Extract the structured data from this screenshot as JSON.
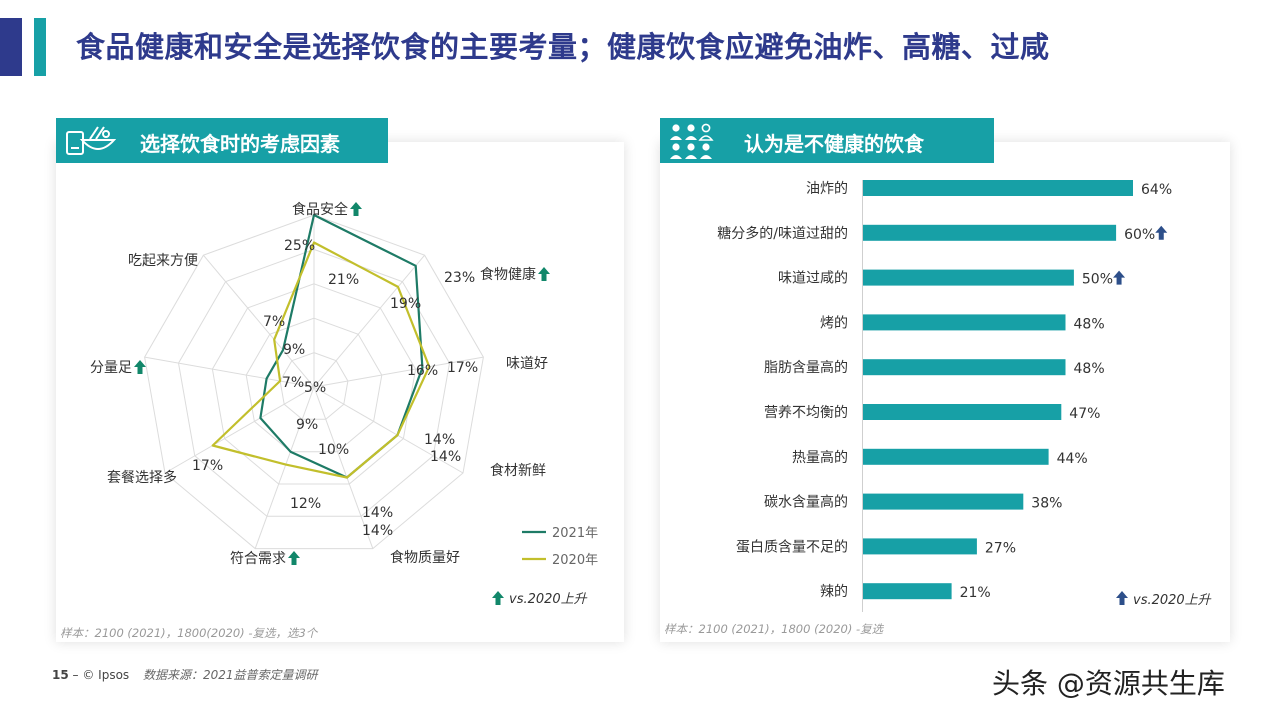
{
  "page": {
    "title": "食品健康和安全是选择饮食的主要考量；健康饮食应避免油炸、高糖、过咸",
    "page_number": "15",
    "dash": "–",
    "brand": "© Ipsos",
    "source": "数据来源：2021益普索定量调研",
    "watermark": "头条 @资源共生库"
  },
  "left_panel": {
    "title": "选择饮食时的考虑因素",
    "icon": "food-bowl-icon",
    "note": "样本：2100 (2021)，1800(2020) -复选，选3个",
    "legend_2021": "2021年",
    "legend_2020": "2020年",
    "vs_label": "vs.2020上升"
  },
  "right_panel": {
    "title": "认为是不健康的饮食",
    "icon": "people-group-icon",
    "note": "样本：2100 (2021)，1800 (2020) -复选",
    "vs_label": "vs.2020上升"
  },
  "colors": {
    "primary": "#2e3a8c",
    "teal": "#17a0a6",
    "green": "#1e7b66",
    "olive": "#c2bf2c",
    "up_green": "#12876a",
    "up_blue": "#2d4f8a"
  },
  "chart_data": [
    {
      "type": "radar",
      "axes": [
        "食品安全",
        "食物健康",
        "味道好",
        "食材新鲜",
        "食物质量好",
        "符合需求",
        "套餐选择多",
        "分量足",
        "吃起来方便"
      ],
      "up_markers": [
        true,
        true,
        false,
        false,
        false,
        true,
        false,
        true,
        false
      ],
      "series": [
        {
          "name": "2021年",
          "values": [
            25,
            23,
            16,
            14,
            14,
            10,
            9,
            7,
            7
          ],
          "labels": [
            "25%",
            "23%",
            "16%",
            "14%",
            "14%",
            "10%",
            "9%",
            "7%",
            "7%"
          ]
        },
        {
          "name": "2020年",
          "values": [
            21,
            19,
            17,
            14,
            14,
            12,
            17,
            5,
            9
          ],
          "labels": [
            "21%",
            "19%",
            "17%",
            "14%",
            "14%",
            "12%",
            "17%",
            "5%",
            "9%"
          ]
        }
      ],
      "range": [
        0,
        25
      ]
    },
    {
      "type": "bar",
      "orientation": "horizontal",
      "categories": [
        "油炸的",
        "糖分多的/味道过甜的",
        "味道过咸的",
        "烤的",
        "脂肪含量高的",
        "营养不均衡的",
        "热量高的",
        "碳水含量高的",
        "蛋白质含量不足的",
        "辣的"
      ],
      "values": [
        64,
        60,
        50,
        48,
        48,
        47,
        44,
        38,
        27,
        21
      ],
      "labels": [
        "64%",
        "60%",
        "50%",
        "48%",
        "48%",
        "47%",
        "44%",
        "38%",
        "27%",
        "21%"
      ],
      "up_markers": [
        false,
        true,
        true,
        false,
        false,
        false,
        false,
        false,
        false,
        false
      ]
    }
  ]
}
